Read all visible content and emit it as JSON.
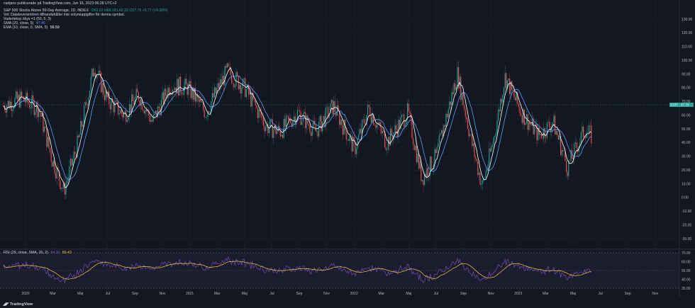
{
  "credit": "carljans publicerade på TradingView.com, Jun 16, 2023 06:28 UTC+2",
  "legend": {
    "symbol": "S&P 500 Stocks Above 50-Day Average, 1D, INDEX",
    "ohlc": "O62.22 H68.18 L62.22 C67.79 +5.77 (+9.30%)",
    "vol": "Vol: Dataleverantören tillhandahåller inte volymuppgifter för denna symbol.",
    "vaderlek": "Vaderleksy ökys =1 (50, 5, 3)",
    "sma_label": "SMA (20, close, 5)",
    "sma_value": "47.45",
    "ema_label": "EMA (10, close, 0, SMA, 5)",
    "ema_value": "56.59",
    "rsi_label": "RSI (29, close, SMA, 20, 2)",
    "rsi_value1": "54.32",
    "rsi_value2": "50.43"
  },
  "price_tag": {
    "label": "ESFI",
    "value": "67.79"
  },
  "y_axis_ticks": [
    "130.00",
    "120.00",
    "110.00",
    "100.00",
    "90.00",
    "80.00",
    "70.00",
    "60.00",
    "50.00",
    "40.00",
    "30.00",
    "20.00",
    "10.00",
    "0.00",
    "-10.00",
    "-20.00",
    "-30.00"
  ],
  "rsi_axis_ticks": [
    "70.00",
    "60.00",
    "50.00",
    "40.00",
    "30.00"
  ],
  "x_axis_ticks": [
    "2020",
    "Mar",
    "Maj",
    "Jul",
    "Sep",
    "Nov",
    "2021",
    "Mar",
    "Maj",
    "Jul",
    "Sep",
    "Nov",
    "2022",
    "Mar",
    "Maj",
    "Jul",
    "Sep",
    "Nov",
    "2023",
    "Mar",
    "Maj",
    "Jul",
    "Sep",
    "Nov"
  ],
  "footer": {
    "logo": "TradingView"
  },
  "colors": {
    "background": "#131722",
    "up": "#26a69a",
    "down": "#ef5350",
    "sma": "#5b9cf6",
    "ema": "#ffffff",
    "rsi": "#7e57c2",
    "rsi_ma": "#f7c948",
    "tag": "#26a69a"
  }
}
